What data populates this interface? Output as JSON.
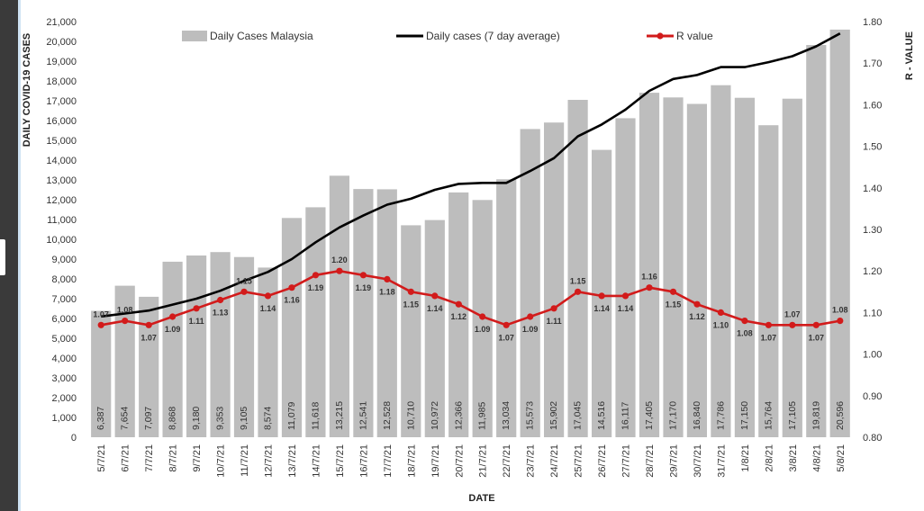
{
  "chart_data": {
    "type": "bar",
    "categories": [
      "5/7/21",
      "6/7/21",
      "7/7/21",
      "8/7/21",
      "9/7/21",
      "10/7/21",
      "11/7/21",
      "12/7/21",
      "13/7/21",
      "14/7/21",
      "15/7/21",
      "16/7/21",
      "17/7/21",
      "18/7/21",
      "19/7/21",
      "20/7/21",
      "21/7/21",
      "22/7/21",
      "23/7/21",
      "24/7/21",
      "25/7/21",
      "26/7/21",
      "27/7/21",
      "28/7/21",
      "29/7/21",
      "30/7/21",
      "31/7/21",
      "1/8/21",
      "2/8/21",
      "3/8/21",
      "4/8/21",
      "5/8/21"
    ],
    "series": [
      {
        "name": "Daily Cases Malaysia",
        "type": "bar",
        "axis": "left",
        "color": "#bdbdbd",
        "values": [
          6387,
          7654,
          7097,
          8868,
          9180,
          9353,
          9105,
          8574,
          11079,
          11618,
          13215,
          12541,
          12528,
          10710,
          10972,
          12366,
          11985,
          13034,
          15573,
          15902,
          17045,
          14516,
          16117,
          17405,
          17170,
          16840,
          17786,
          17150,
          15764,
          17105,
          19819,
          20596
        ],
        "value_labels": [
          "6,387",
          "7,654",
          "7,097",
          "8,868",
          "9,180",
          "9,353",
          "9,105",
          "8,574",
          "11,079",
          "11,618",
          "13,215",
          "12,541",
          "12,528",
          "10,710",
          "10,972",
          "12,366",
          "11,985",
          "13,034",
          "15,573",
          "15,902",
          "17,045",
          "14,516",
          "16,117",
          "17,405",
          "17,170",
          "16,840",
          "17,786",
          "17,150",
          "15,764",
          "17,105",
          "19,819",
          "20,596"
        ]
      },
      {
        "name": "Daily cases (7 day average)",
        "type": "line",
        "axis": "left",
        "color": "#000000",
        "values": [
          6100,
          6250,
          6400,
          6700,
          7000,
          7400,
          7900,
          8350,
          9000,
          9850,
          10600,
          11200,
          11750,
          12050,
          12500,
          12800,
          12850,
          12850,
          13450,
          14100,
          15200,
          15800,
          16550,
          17500,
          18100,
          18300,
          18700,
          18700,
          18950,
          19250,
          19750,
          20400
        ]
      },
      {
        "name": "R value",
        "type": "line",
        "axis": "right",
        "color": "#d21b1b",
        "values": [
          1.07,
          1.08,
          1.07,
          1.09,
          1.11,
          1.13,
          1.15,
          1.14,
          1.16,
          1.19,
          1.2,
          1.19,
          1.18,
          1.15,
          1.14,
          1.12,
          1.09,
          1.07,
          1.09,
          1.11,
          1.15,
          1.14,
          1.14,
          1.16,
          1.15,
          1.12,
          1.1,
          1.08,
          1.07,
          1.07,
          1.07,
          1.08
        ],
        "value_labels": [
          "1.07",
          "1.08",
          "1.07",
          "1.09",
          "1.11",
          "1.13",
          "1.15",
          "1.14",
          "1.16",
          "1.19",
          "1.20",
          "1.19",
          "1.18",
          "1.15",
          "1.14",
          "1.12",
          "1.09",
          "1.07",
          "1.09",
          "1.11",
          "1.15",
          "1.14",
          "1.14",
          "1.16",
          "1.15",
          "1.12",
          "1.10",
          "1.08",
          "1.07",
          "1.07",
          "1.07",
          "1.08"
        ]
      }
    ],
    "xlabel": "DATE",
    "ylabel": "DAILY COVID-19 CASES",
    "y2label": "R - VALUE",
    "ylim": [
      0,
      21000
    ],
    "y2lim": [
      0.8,
      1.8
    ],
    "yticks": [
      "0",
      "1,000",
      "2,000",
      "3,000",
      "4,000",
      "5,000",
      "6,000",
      "7,000",
      "8,000",
      "9,000",
      "10,000",
      "11,000",
      "12,000",
      "13,000",
      "14,000",
      "15,000",
      "16,000",
      "17,000",
      "18,000",
      "19,000",
      "20,000",
      "21,000"
    ],
    "y2ticks": [
      "0.80",
      "0.90",
      "1.00",
      "1.10",
      "1.20",
      "1.30",
      "1.40",
      "1.50",
      "1.60",
      "1.70",
      "1.80"
    ],
    "grid": false,
    "legend_position": "top"
  }
}
